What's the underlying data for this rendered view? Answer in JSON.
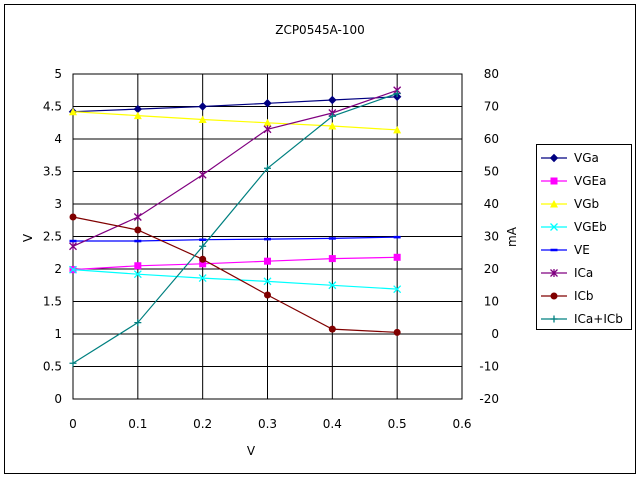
{
  "chart_data": {
    "type": "line",
    "title": "ZCP0545A-100",
    "xlabel": "V",
    "ylabel_left": "V",
    "ylabel_right": "mA",
    "xlim": [
      0,
      0.6
    ],
    "x_ticks": [
      "0",
      "0.1",
      "0.2",
      "0.3",
      "0.4",
      "0.5",
      "0.6"
    ],
    "ylim_left": [
      0,
      5
    ],
    "y_left_ticks": [
      "0",
      "0.5",
      "1",
      "1.5",
      "2",
      "2.5",
      "3",
      "3.5",
      "4",
      "4.5",
      "5"
    ],
    "ylim_right": [
      -20,
      80
    ],
    "y_right_ticks": [
      "-20",
      "-10",
      "0",
      "10",
      "20",
      "30",
      "40",
      "50",
      "60",
      "70",
      "80"
    ],
    "grid": true,
    "legend_position": "right",
    "x": [
      0,
      0.1,
      0.2,
      0.3,
      0.4,
      0.5
    ],
    "series": [
      {
        "name": "VGa",
        "axis": "left",
        "color": "#000080",
        "marker": "diamond",
        "values": [
          4.42,
          4.46,
          4.5,
          4.55,
          4.6,
          4.65
        ]
      },
      {
        "name": "VGEa",
        "axis": "left",
        "color": "#ff00ff",
        "marker": "square",
        "values": [
          1.99,
          2.05,
          2.08,
          2.12,
          2.16,
          2.18
        ]
      },
      {
        "name": "VGb",
        "axis": "left",
        "color": "#ffff00",
        "marker": "triangle",
        "values": [
          4.42,
          4.36,
          4.3,
          4.25,
          4.2,
          4.14
        ]
      },
      {
        "name": "VGEb",
        "axis": "left",
        "color": "#00ffff",
        "marker": "x",
        "values": [
          1.99,
          1.92,
          1.86,
          1.81,
          1.75,
          1.69
        ]
      },
      {
        "name": "VE",
        "axis": "left",
        "color": "#0000ff",
        "marker": "dash",
        "values": [
          2.43,
          2.43,
          2.45,
          2.46,
          2.47,
          2.49
        ]
      },
      {
        "name": "ICa",
        "axis": "right",
        "color": "#800080",
        "marker": "star",
        "values": [
          27,
          36,
          49,
          63,
          68,
          75
        ]
      },
      {
        "name": "ICb",
        "axis": "right",
        "color": "#800000",
        "marker": "circle",
        "values": [
          36,
          32,
          23,
          12,
          1.5,
          0.5
        ]
      },
      {
        "name": "ICa+ICb",
        "axis": "right",
        "color": "#008080",
        "marker": "plus",
        "values": [
          -9,
          3.5,
          27,
          51,
          67,
          74
        ]
      }
    ]
  }
}
